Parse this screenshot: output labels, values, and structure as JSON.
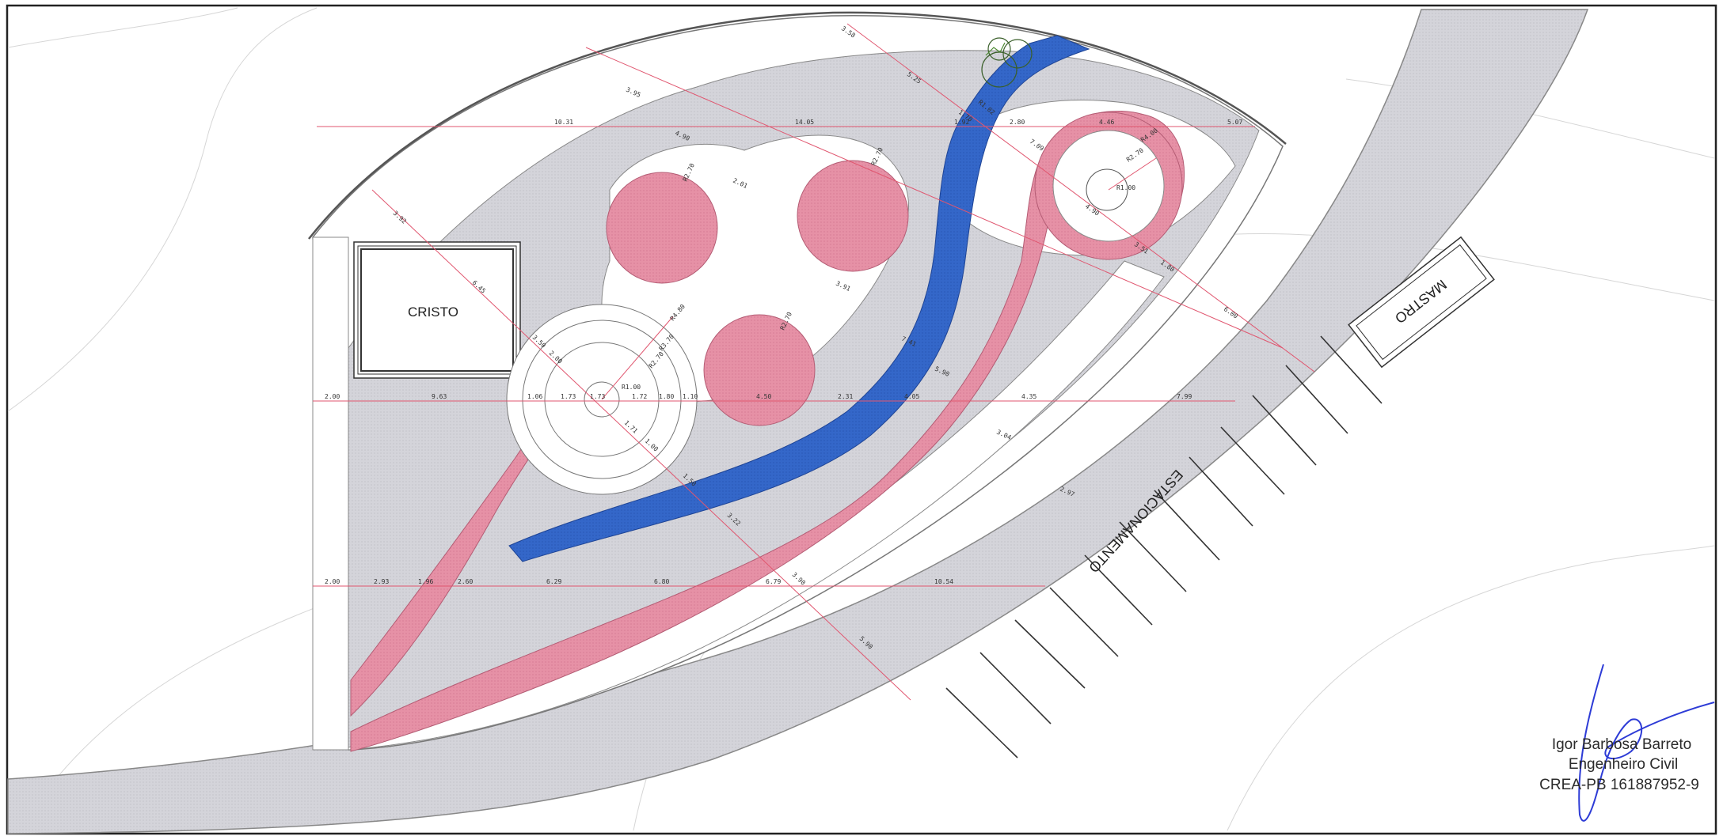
{
  "labels": {
    "cristo": "CRISTO",
    "mastro": "MASTRO",
    "estacionamento": "ESTACIONAMENTO"
  },
  "signature": {
    "name": "Igor Barbosa Barreto",
    "title": "Engenheiro Civil",
    "registration": "CREA-PB 161887952-9"
  },
  "dimensions": {
    "row1": [
      "10.31",
      "14.05",
      "1.92",
      "2.80",
      "4.46",
      "5.07"
    ],
    "row2": [
      "2.00",
      "9.63",
      "1.06",
      "1.73",
      "1.73",
      "1.72",
      "1.80",
      "1.10",
      "4.50",
      "2.31",
      "4.05",
      "4.35",
      "7.99"
    ],
    "row3": [
      "2.00",
      "2.93",
      "1.96",
      "2.60",
      "6.29",
      "6.80",
      "6.79",
      "10.54"
    ],
    "radii": [
      "R1.00",
      "R2.70",
      "R3.70",
      "R4.80",
      "R1.00",
      "R2.70",
      "R4.00",
      "R2.70",
      "R2.70",
      "R2.70",
      "R1.02"
    ],
    "diag_a": [
      "3.92",
      "6.45",
      "3.50",
      "2.00",
      "1.71",
      "1.00",
      "1.50",
      "3.22",
      "3.90",
      "5.90"
    ],
    "diag_b": [
      "3.95",
      "4.90",
      "2.01",
      "3.91",
      "7.41",
      "5.90",
      "3.04",
      "2.97",
      "6.01"
    ],
    "diag_c": [
      "3.58",
      "5.25",
      "1.70",
      "7.09",
      "4.90",
      "3.51",
      "1.80",
      "6.00"
    ]
  },
  "colors": {
    "paving": "#d3d3d9",
    "pink_path": "#e58fa4",
    "blue_path": "#3566c8",
    "dimension_line": "#e0566f"
  }
}
